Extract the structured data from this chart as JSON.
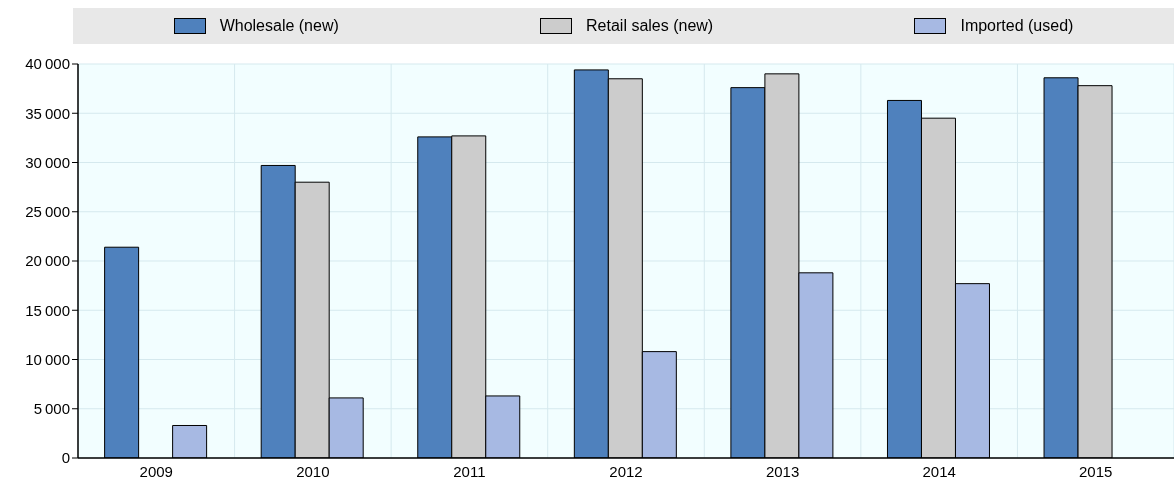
{
  "chart_data": {
    "type": "bar",
    "categories": [
      "2009",
      "2010",
      "2011",
      "2012",
      "2013",
      "2014",
      "2015"
    ],
    "series": [
      {
        "name": "Wholesale (new)",
        "color": "#4f81bd",
        "values": [
          21400,
          29700,
          32600,
          39400,
          37600,
          36300,
          38600
        ]
      },
      {
        "name": "Retail sales (new)",
        "color": "#cccccc",
        "values": [
          null,
          28000,
          32700,
          38500,
          39000,
          34500,
          37800
        ]
      },
      {
        "name": "Imported (used)",
        "color": "#a7b9e3",
        "values": [
          3300,
          6100,
          6300,
          10800,
          18800,
          17700,
          null
        ]
      }
    ],
    "ylim": [
      0,
      40000
    ],
    "yticks": [
      0,
      5000,
      10000,
      15000,
      20000,
      25000,
      30000,
      35000,
      40000
    ],
    "grid": true,
    "legend": "top"
  }
}
